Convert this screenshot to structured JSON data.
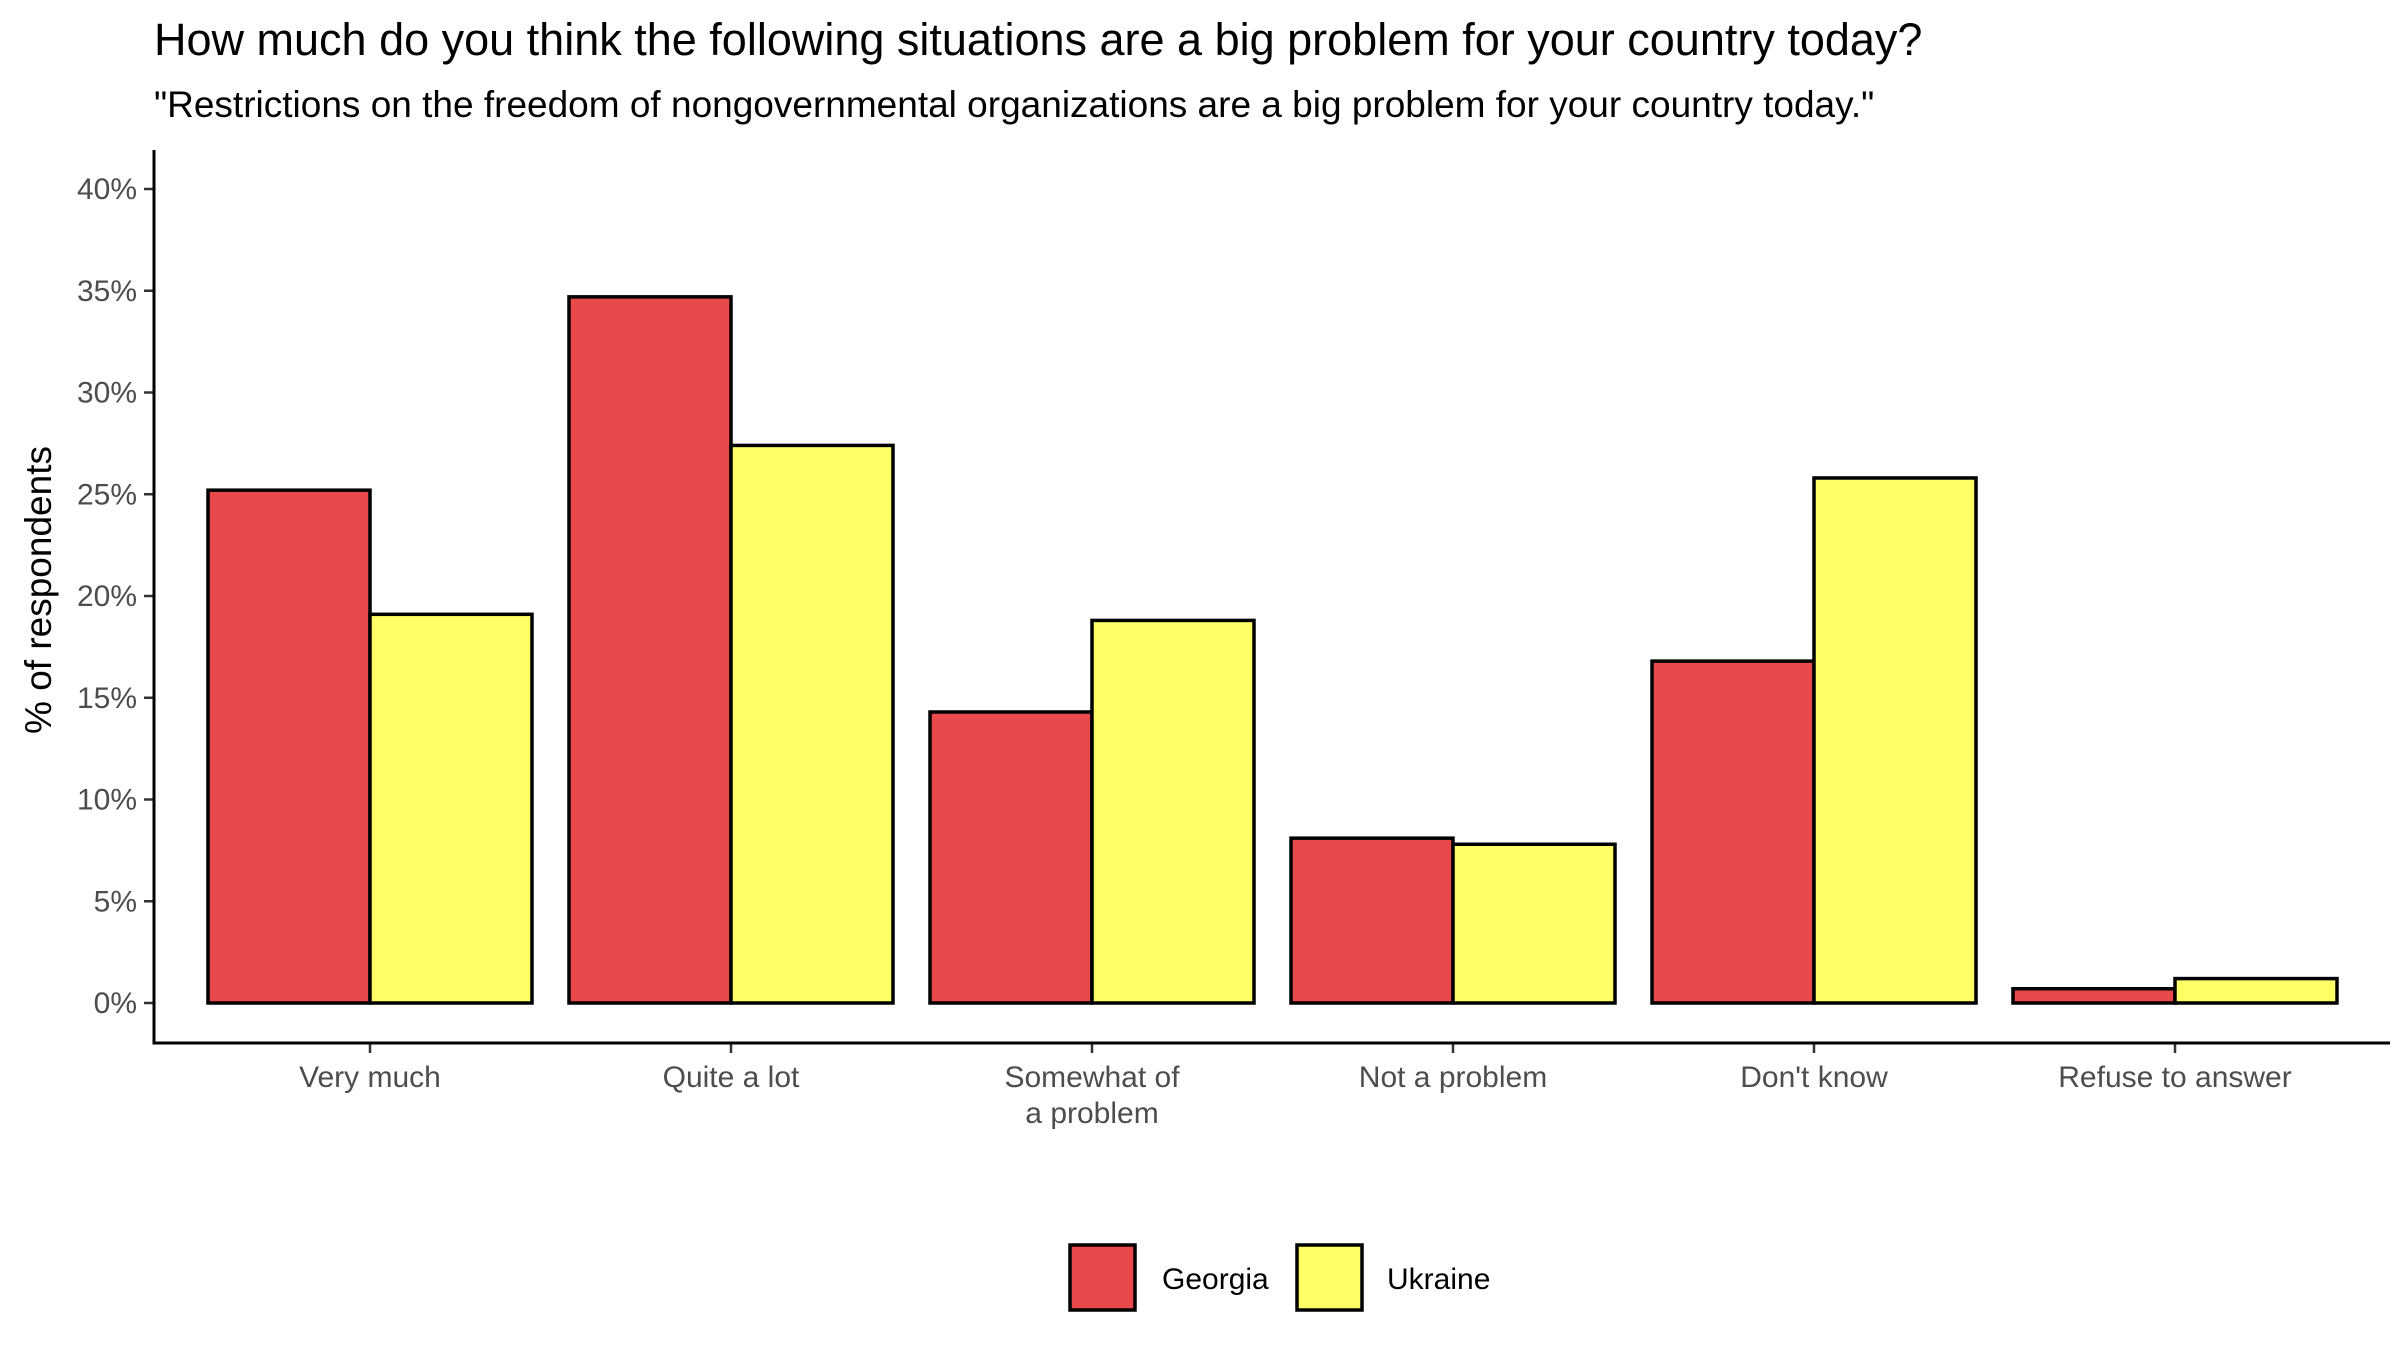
{
  "chart_data": {
    "type": "bar",
    "title": "How much do you think the following situations are a big problem for your country today?",
    "subtitle": "\"Restrictions on the freedom of nongovernmental organizations are a big problem for your country today.\"",
    "xlabel": "",
    "ylabel": "% of respondents",
    "ylim": [
      0,
      40
    ],
    "yticks": [
      0,
      5,
      10,
      15,
      20,
      25,
      30,
      35,
      40
    ],
    "ytick_labels": [
      "0%",
      "5%",
      "10%",
      "15%",
      "20%",
      "25%",
      "30%",
      "35%",
      "40%"
    ],
    "categories": [
      [
        "Very much"
      ],
      [
        "Quite a lot"
      ],
      [
        "Somewhat of",
        "a problem"
      ],
      [
        "Not a problem"
      ],
      [
        "Don't know"
      ],
      [
        "Refuse to answer"
      ]
    ],
    "series": [
      {
        "name": "Georgia",
        "color": "#e8494a",
        "values": [
          25.2,
          34.7,
          14.3,
          8.1,
          16.8,
          0.7
        ]
      },
      {
        "name": "Ukraine",
        "color": "#ffff66",
        "values": [
          19.1,
          27.4,
          18.8,
          7.8,
          25.8,
          1.2
        ]
      }
    ],
    "legend_position": "bottom",
    "grid": false
  }
}
